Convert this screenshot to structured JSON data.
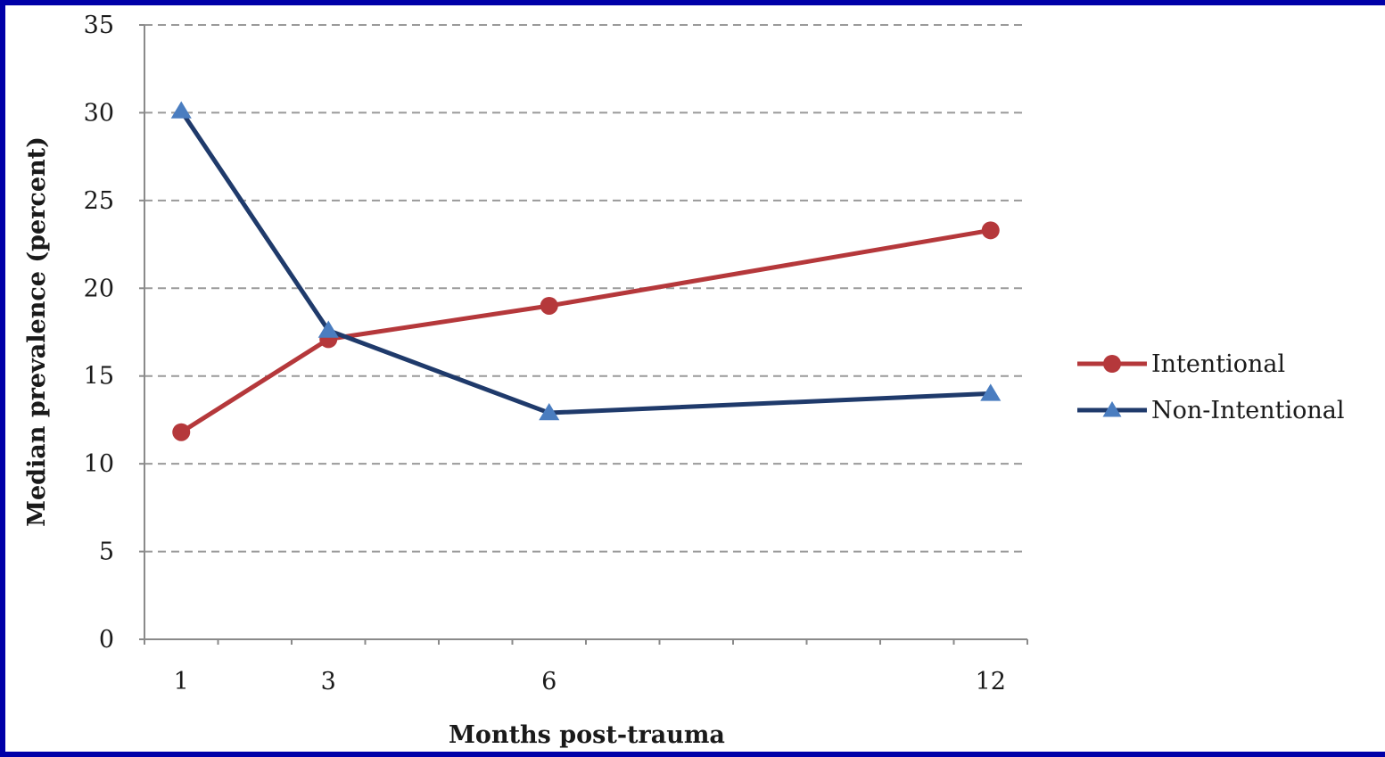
{
  "chart_data": {
    "type": "line",
    "categories": [
      "1",
      "3",
      "6",
      "12"
    ],
    "xlabel": "Months post-trauma",
    "ylabel": "Median prevalence (percent)",
    "ylim": [
      0,
      35
    ],
    "yticks": [
      "0",
      "5",
      "10",
      "15",
      "20",
      "25",
      "30",
      "35"
    ],
    "grid": "horizontal dashed",
    "legend_position": "right",
    "series": [
      {
        "name": "Intentional",
        "values": [
          11.8,
          17.1,
          19.0,
          23.3
        ],
        "color": "#b5383b",
        "marker": "circle"
      },
      {
        "name": "Non-Intentional",
        "values": [
          30.1,
          17.6,
          12.9,
          14.0
        ],
        "color": "#1f3a6b",
        "marker": "triangle",
        "marker_color": "#4a7dc0"
      }
    ]
  }
}
